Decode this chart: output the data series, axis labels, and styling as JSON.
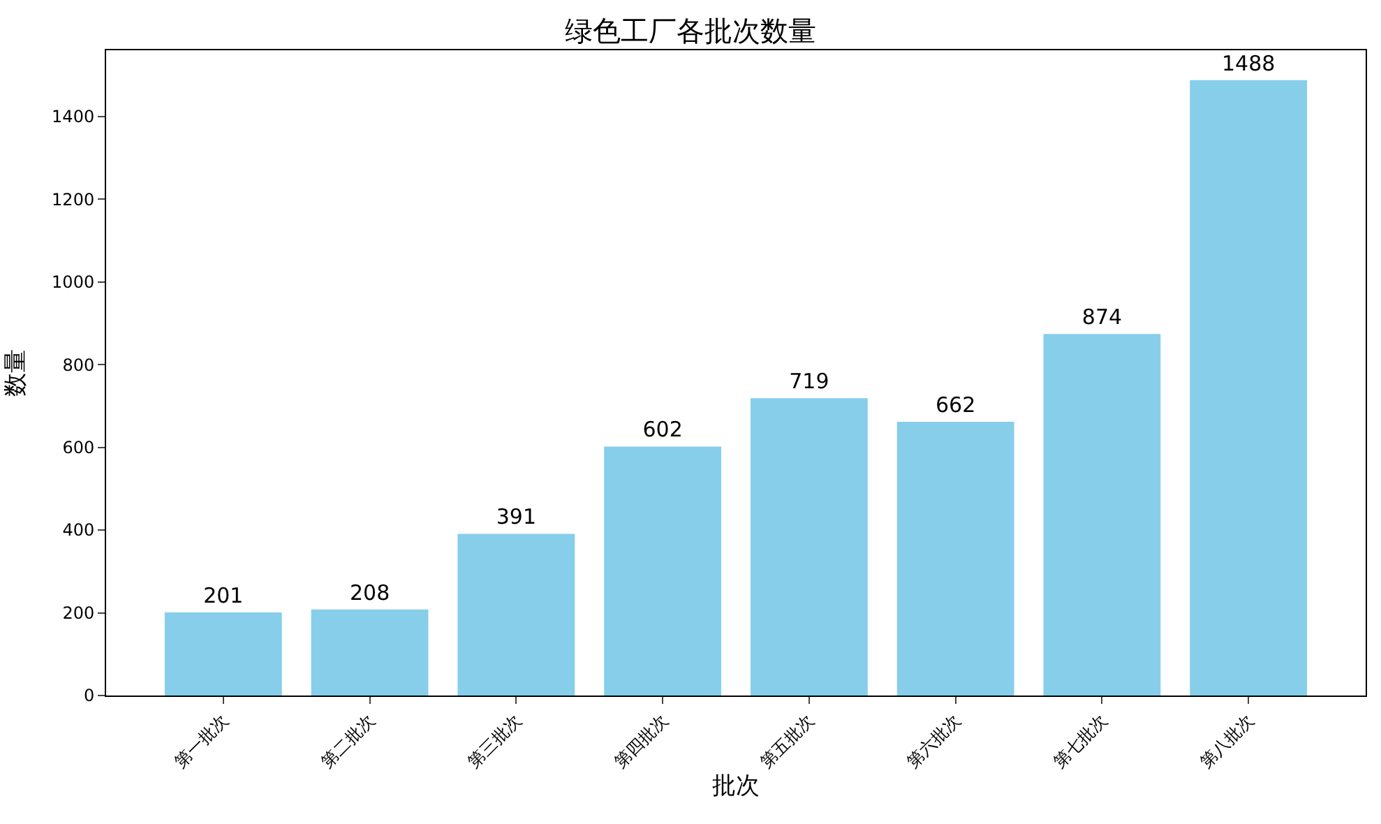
{
  "chart_data": {
    "type": "bar",
    "title": "绿色工厂各批次数量",
    "xlabel": "批次",
    "ylabel": "数量",
    "categories": [
      "第一批次",
      "第二批次",
      "第三批次",
      "第四批次",
      "第五批次",
      "第六批次",
      "第七批次",
      "第八批次"
    ],
    "values": [
      201,
      208,
      391,
      602,
      719,
      662,
      874,
      1488
    ],
    "color": "#87ceeb",
    "ylim": [
      0,
      1560
    ],
    "yticks": [
      0,
      200,
      400,
      600,
      800,
      1000,
      1200,
      1400
    ],
    "data_labels": true
  }
}
